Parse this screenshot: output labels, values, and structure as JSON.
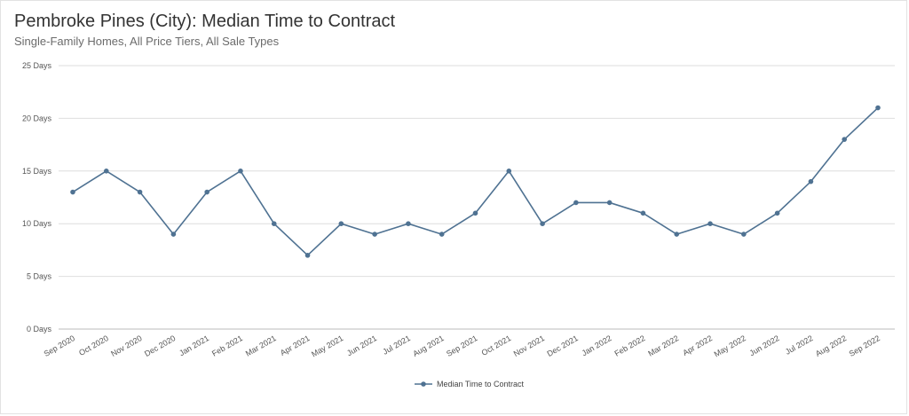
{
  "chart_data": {
    "type": "line",
    "title": "Pembroke Pines (City): Median Time to Contract",
    "subtitle": "Single-Family Homes, All Price Tiers, All Sale Types",
    "categories": [
      "Sep 2020",
      "Oct 2020",
      "Nov 2020",
      "Dec 2020",
      "Jan 2021",
      "Feb 2021",
      "Mar 2021",
      "Apr 2021",
      "May 2021",
      "Jun 2021",
      "Jul 2021",
      "Aug 2021",
      "Sep 2021",
      "Oct 2021",
      "Nov 2021",
      "Dec 2021",
      "Jan 2022",
      "Feb 2022",
      "Mar 2022",
      "Apr 2022",
      "May 2022",
      "Jun 2022",
      "Jul 2022",
      "Aug 2022",
      "Sep 2022"
    ],
    "series": [
      {
        "name": "Median Time to Contract",
        "values": [
          13,
          15,
          13,
          9,
          13,
          15,
          10,
          7,
          10,
          9,
          10,
          9,
          11,
          15,
          10,
          12,
          12,
          11,
          9,
          10,
          9,
          11,
          14,
          18,
          21
        ]
      }
    ],
    "ylim": [
      0,
      25
    ],
    "yticks": [
      {
        "value": 0,
        "label": "0 Days"
      },
      {
        "value": 5,
        "label": "5 Days"
      },
      {
        "value": 10,
        "label": "10 Days"
      },
      {
        "value": 15,
        "label": "15 Days"
      },
      {
        "value": 20,
        "label": "20 Days"
      },
      {
        "value": 25,
        "label": "25 Days"
      }
    ],
    "grid": true,
    "legend_position": "bottom-center",
    "colors": {
      "line": "#4f7292",
      "grid": "#dedede",
      "axis": "#bbbbbb"
    }
  }
}
